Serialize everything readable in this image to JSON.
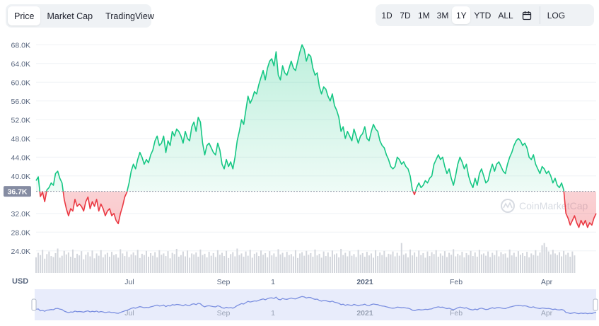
{
  "tabs": [
    {
      "label": "Price",
      "active": true
    },
    {
      "label": "Market Cap",
      "active": false
    },
    {
      "label": "TradingView",
      "active": false
    }
  ],
  "ranges": [
    {
      "label": "1D",
      "active": false
    },
    {
      "label": "7D",
      "active": false
    },
    {
      "label": "1M",
      "active": false
    },
    {
      "label": "3M",
      "active": false
    },
    {
      "label": "1Y",
      "active": true
    },
    {
      "label": "YTD",
      "active": false
    },
    {
      "label": "ALL",
      "active": false
    }
  ],
  "calendar_icon": "calendar-icon",
  "log_label": "LOG",
  "currency_label": "USD",
  "watermark": "CoinMarketCap",
  "colors": {
    "up": "#16c784",
    "down": "#ea3943",
    "nav": "#7b8fe0"
  },
  "chart_data": {
    "type": "line",
    "reference_price": 36.7,
    "reference_label": "36.7K",
    "ylim": [
      22.0,
      70.0
    ],
    "y_unit": "K USD",
    "y_ticks": [
      "68.0K",
      "64.0K",
      "60.0K",
      "56.0K",
      "52.0K",
      "48.0K",
      "44.0K",
      "40.0K",
      "32.0K",
      "28.0K",
      "24.0K"
    ],
    "x_ticks": [
      "Jul",
      "Sep",
      "1",
      "2021",
      "Feb",
      "Apr"
    ],
    "price": [
      39.0,
      39.8,
      35.6,
      36.5,
      34.5,
      37.0,
      37.5,
      38.5,
      38.0,
      40.5,
      41.0,
      39.5,
      38.5,
      35.0,
      33.0,
      31.5,
      33.0,
      32.5,
      35.0,
      33.5,
      34.0,
      33.5,
      32.5,
      34.5,
      35.5,
      33.0,
      34.5,
      33.5,
      35.0,
      32.5,
      34.0,
      33.0,
      31.5,
      32.5,
      33.0,
      31.5,
      32.0,
      30.5,
      29.8,
      32.0,
      33.5,
      35.5,
      36.5,
      38.5,
      41.0,
      42.5,
      41.5,
      43.5,
      45.0,
      44.0,
      42.5,
      43.5,
      42.8,
      44.5,
      45.5,
      47.5,
      48.5,
      46.5,
      47.0,
      48.5,
      45.0,
      47.5,
      46.5,
      49.5,
      48.5,
      50.0,
      49.5,
      48.5,
      47.0,
      49.5,
      48.0,
      47.5,
      50.5,
      51.5,
      49.5,
      52.5,
      51.5,
      47.0,
      44.5,
      46.5,
      47.0,
      46.0,
      45.0,
      44.5,
      47.0,
      45.5,
      42.5,
      41.5,
      43.5,
      42.0,
      43.0,
      41.5,
      44.0,
      47.5,
      49.5,
      52.0,
      51.0,
      54.0,
      57.0,
      55.5,
      56.5,
      58.0,
      57.5,
      59.5,
      61.0,
      62.5,
      60.5,
      63.0,
      64.5,
      65.0,
      63.5,
      66.5,
      61.5,
      60.5,
      63.5,
      62.0,
      61.5,
      63.0,
      64.5,
      63.0,
      62.5,
      64.5,
      66.5,
      68.0,
      67.0,
      64.5,
      66.0,
      65.5,
      63.0,
      61.5,
      62.0,
      59.0,
      57.5,
      59.0,
      58.5,
      57.0,
      56.0,
      57.5,
      55.0,
      54.0,
      52.5,
      49.5,
      50.5,
      48.0,
      49.5,
      48.5,
      47.5,
      50.0,
      48.5,
      47.0,
      48.5,
      49.0,
      50.5,
      48.0,
      47.5,
      49.5,
      51.0,
      50.0,
      49.5,
      47.5,
      46.5,
      46.0,
      44.5,
      43.5,
      42.0,
      41.5,
      42.0,
      44.0,
      43.5,
      42.5,
      43.0,
      42.0,
      41.5,
      40.0,
      37.0,
      36.0,
      37.5,
      38.5,
      37.5,
      38.0,
      39.0,
      38.5,
      39.5,
      40.0,
      42.5,
      43.5,
      44.5,
      43.5,
      44.0,
      42.0,
      40.5,
      41.5,
      39.5,
      38.0,
      40.0,
      42.5,
      44.0,
      43.0,
      41.5,
      42.5,
      40.0,
      38.5,
      37.5,
      39.5,
      38.0,
      40.5,
      41.5,
      40.0,
      38.5,
      39.0,
      41.0,
      42.5,
      41.0,
      42.5,
      43.0,
      42.0,
      41.0,
      40.5,
      42.5,
      44.0,
      45.0,
      46.5,
      47.5,
      48.0,
      47.5,
      46.5,
      47.0,
      46.0,
      44.0,
      43.5,
      44.5,
      42.5,
      41.5,
      40.5,
      42.0,
      41.5,
      40.5,
      41.0,
      40.0,
      38.5,
      39.5,
      38.0,
      37.5,
      38.5,
      37.0,
      32.0,
      31.0,
      29.5,
      30.5,
      31.5,
      30.0,
      29.0,
      30.5,
      29.5,
      30.5,
      29.0,
      30.0,
      29.5,
      31.0,
      32.0
    ],
    "volume": [
      0.48,
      0.62,
      0.55,
      0.71,
      0.44,
      0.58,
      0.66,
      0.52,
      0.49,
      0.61,
      0.75,
      0.47,
      0.53,
      0.68,
      0.57,
      0.63,
      0.5,
      0.72,
      0.46,
      0.59,
      0.54,
      0.67,
      0.42,
      0.56,
      0.64,
      0.51,
      0.69,
      0.45,
      0.6,
      0.53,
      0.7,
      0.48,
      0.57,
      0.62,
      0.5,
      0.65,
      0.55,
      0.58,
      0.47,
      0.73,
      0.6,
      0.52,
      0.66,
      0.49,
      0.57,
      0.63,
      0.54,
      0.71,
      0.46,
      0.59,
      0.55,
      0.68,
      0.5,
      0.61,
      0.53,
      0.64,
      0.48,
      0.7,
      0.56,
      0.6,
      0.52,
      0.67,
      0.45,
      0.62,
      0.58,
      0.74,
      0.5,
      0.55,
      0.66,
      0.51,
      0.69,
      0.47,
      0.6,
      0.57,
      0.63,
      0.5,
      0.72,
      0.55,
      0.59,
      0.48,
      0.65,
      0.53,
      0.61,
      0.49,
      0.7,
      0.56,
      0.62,
      0.52,
      0.68,
      0.46,
      0.58,
      0.64,
      0.51,
      0.75,
      0.55,
      0.6,
      0.5,
      0.66,
      0.53,
      0.71,
      0.47,
      0.59,
      0.63,
      0.52,
      0.69,
      0.56,
      0.61,
      0.48,
      0.67,
      0.54,
      0.6,
      0.5,
      0.73,
      0.57,
      0.62,
      0.49,
      0.65,
      0.55,
      0.58,
      0.51,
      0.7,
      0.46,
      0.6,
      0.64,
      0.53,
      0.68,
      0.56,
      0.61,
      0.5,
      0.72,
      0.54,
      0.59,
      0.47,
      0.66,
      0.52,
      0.63,
      0.5,
      0.69,
      0.57,
      0.6,
      0.48,
      0.74,
      0.55,
      0.62,
      0.51,
      0.67,
      0.53,
      0.58,
      0.49,
      0.71,
      0.56,
      0.61,
      0.5,
      0.65,
      0.54,
      0.6,
      0.47,
      0.7,
      0.52,
      0.63,
      0.55,
      0.68,
      0.49,
      0.59,
      0.57,
      0.66,
      0.51,
      0.62,
      0.53,
      0.92,
      0.56,
      0.6,
      0.48,
      0.72,
      0.54,
      0.63,
      0.5,
      0.69,
      0.55,
      0.61,
      0.47,
      0.66,
      0.52,
      0.64,
      0.58,
      0.7,
      0.5,
      0.6,
      0.53,
      0.67,
      0.49,
      0.62,
      0.56,
      0.73,
      0.51,
      0.59,
      0.54,
      0.65,
      0.48,
      0.61,
      0.55,
      0.68,
      0.52,
      0.63,
      0.5,
      0.71,
      0.57,
      0.6,
      0.53,
      0.66,
      0.49,
      0.62,
      0.55,
      0.69,
      0.51,
      0.64,
      0.58,
      0.6,
      0.47,
      0.72,
      0.54,
      0.62,
      0.5,
      0.67,
      0.56,
      0.61,
      0.52,
      0.65,
      0.48,
      0.6,
      0.55,
      0.7,
      0.53,
      0.63,
      0.85,
      0.92,
      0.8,
      0.66,
      0.57,
      0.71,
      0.6,
      0.55,
      0.64,
      0.51,
      0.68,
      0.56,
      0.62,
      0.5,
      0.66,
      0.54
    ],
    "navigator_ticks": [
      "Jul",
      "Sep",
      "1",
      "2021",
      "Feb",
      "Apr"
    ]
  }
}
